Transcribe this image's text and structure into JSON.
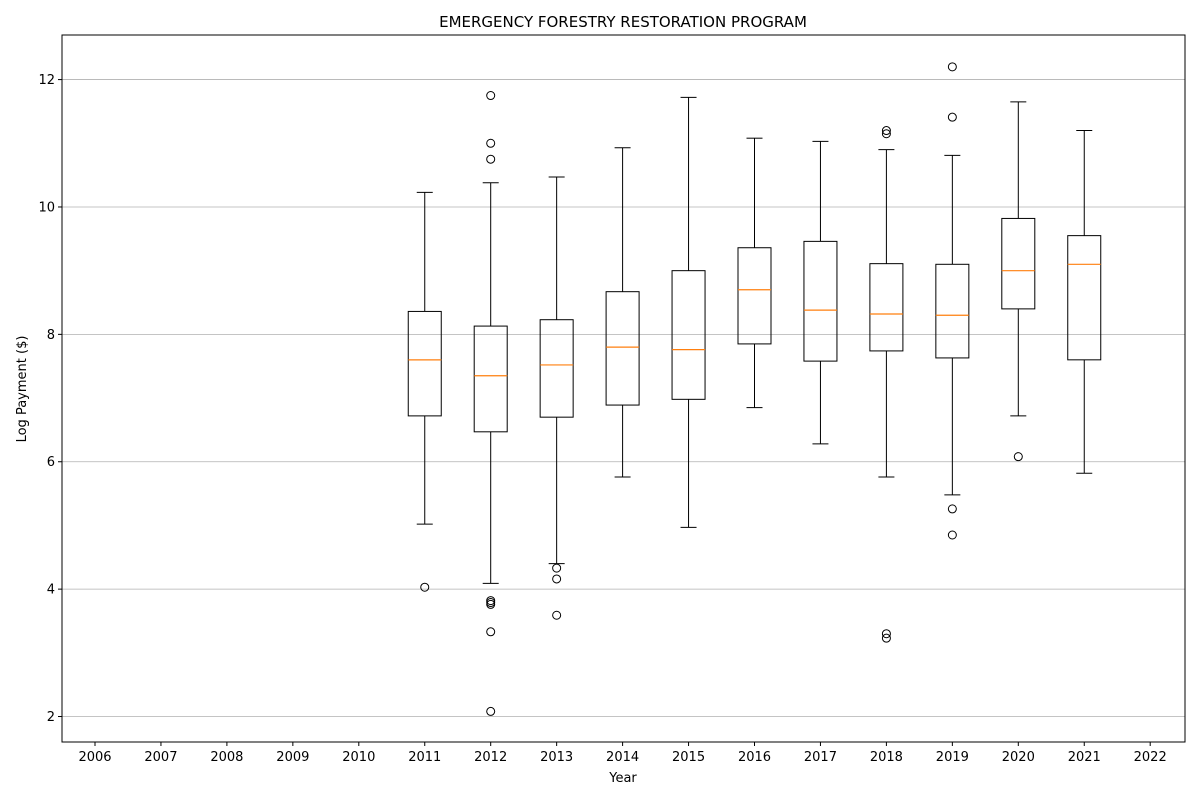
{
  "chart_data": {
    "type": "box",
    "title": "EMERGENCY FORESTRY RESTORATION PROGRAM",
    "xlabel": "Year",
    "ylabel": "Log Payment ($)",
    "categories": [
      "2006",
      "2007",
      "2008",
      "2009",
      "2010",
      "2011",
      "2012",
      "2013",
      "2014",
      "2015",
      "2016",
      "2017",
      "2018",
      "2019",
      "2020",
      "2021",
      "2022"
    ],
    "yticks": [
      2,
      4,
      6,
      8,
      10,
      12
    ],
    "ylim": [
      1.6,
      12.7
    ],
    "grid": "y",
    "colors": {
      "box": "#000000",
      "median": "#ff7f0e",
      "grid": "#b0b0b0"
    },
    "boxes": [
      {
        "category": "2011",
        "whisker_low": 5.02,
        "q1": 6.72,
        "median": 7.6,
        "q3": 8.36,
        "whisker_high": 10.23,
        "outliers": [
          4.03
        ]
      },
      {
        "category": "2012",
        "whisker_low": 4.09,
        "q1": 6.47,
        "median": 7.35,
        "q3": 8.13,
        "whisker_high": 10.38,
        "outliers": [
          11.75,
          11.0,
          10.75,
          3.82,
          3.79,
          3.76,
          3.33,
          2.08
        ]
      },
      {
        "category": "2013",
        "whisker_low": 4.4,
        "q1": 6.7,
        "median": 7.52,
        "q3": 8.23,
        "whisker_high": 10.47,
        "outliers": [
          4.33,
          4.16,
          3.59
        ]
      },
      {
        "category": "2014",
        "whisker_low": 5.76,
        "q1": 6.89,
        "median": 7.8,
        "q3": 8.67,
        "whisker_high": 10.93,
        "outliers": []
      },
      {
        "category": "2015",
        "whisker_low": 4.97,
        "q1": 6.98,
        "median": 7.76,
        "q3": 9.0,
        "whisker_high": 11.72,
        "outliers": []
      },
      {
        "category": "2016",
        "whisker_low": 6.85,
        "q1": 7.85,
        "median": 8.7,
        "q3": 9.36,
        "whisker_high": 11.08,
        "outliers": []
      },
      {
        "category": "2017",
        "whisker_low": 6.28,
        "q1": 7.58,
        "median": 8.38,
        "q3": 9.46,
        "whisker_high": 11.03,
        "outliers": []
      },
      {
        "category": "2018",
        "whisker_low": 5.76,
        "q1": 7.74,
        "median": 8.32,
        "q3": 9.11,
        "whisker_high": 10.9,
        "outliers": [
          11.2,
          11.15,
          3.3,
          3.23
        ]
      },
      {
        "category": "2019",
        "whisker_low": 5.48,
        "q1": 7.63,
        "median": 8.3,
        "q3": 9.1,
        "whisker_high": 10.81,
        "outliers": [
          12.2,
          11.41,
          5.26,
          4.85
        ]
      },
      {
        "category": "2020",
        "whisker_low": 6.72,
        "q1": 8.4,
        "median": 9.0,
        "q3": 9.82,
        "whisker_high": 11.65,
        "outliers": [
          6.08
        ]
      },
      {
        "category": "2021",
        "whisker_low": 5.82,
        "q1": 7.6,
        "median": 9.1,
        "q3": 9.55,
        "whisker_high": 11.2,
        "outliers": []
      }
    ]
  }
}
